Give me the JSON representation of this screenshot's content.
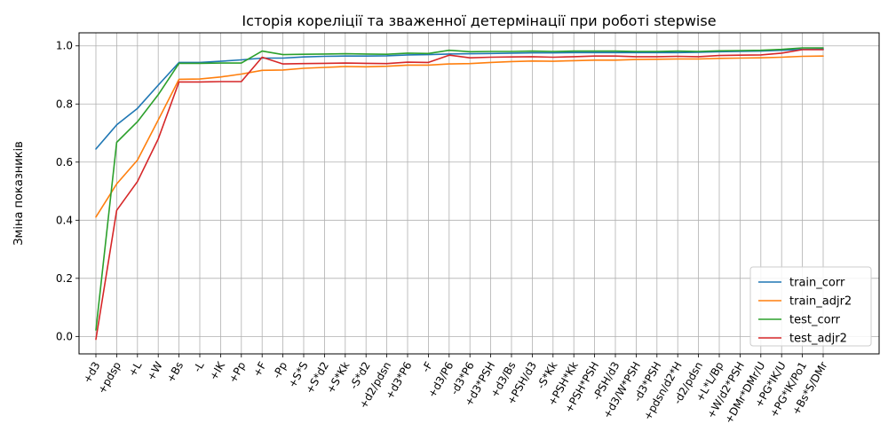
{
  "chart_data": {
    "type": "line",
    "title": "Історія кореліції та зваженної детермінації при роботі stepwise",
    "xlabel": "",
    "ylabel": "Зміна показників",
    "ylim": [
      -0.06,
      1.045
    ],
    "yticks": [
      0.0,
      0.2,
      0.4,
      0.6,
      0.8,
      1.0
    ],
    "yticklabels": [
      "0.0",
      "0.2",
      "0.4",
      "0.6",
      "0.8",
      "1.0"
    ],
    "grid": true,
    "legend_position": "lower-right",
    "categories": [
      "+d3",
      "+pdsp",
      "+L",
      "+W",
      "+Bs",
      "-L",
      "+IK",
      "+Pp",
      "+F",
      "-Pp",
      "+S*S",
      "+S*d2",
      "+S*Kk",
      "-S*d2",
      "+d2/pdsn",
      "+d3*P6",
      "-F",
      "+d3/P6",
      "-d3*P6",
      "+d3*PSH",
      "+d3/Bs",
      "+PSH/d3",
      "-S*Kk",
      "+PSH*Kk",
      "+PSH*PSH",
      "-PSH/d3",
      "+d3/W*PSH",
      "-d3*PSH",
      "+pdsn/d2*H",
      "-d2/pdsn",
      "+L*L/Bp",
      "+W/d2*PSH",
      "+DMr*DMr/U",
      "+PG*IK/U",
      "+PG*IK/Po1",
      "+Bs*S/DMr"
    ],
    "series": [
      {
        "name": "train_corr",
        "color": "#1f77b4",
        "values": [
          0.645,
          0.728,
          0.785,
          0.865,
          0.943,
          0.943,
          0.947,
          0.952,
          0.958,
          0.958,
          0.962,
          0.964,
          0.965,
          0.965,
          0.966,
          0.969,
          0.97,
          0.972,
          0.973,
          0.974,
          0.975,
          0.976,
          0.976,
          0.977,
          0.977,
          0.977,
          0.977,
          0.977,
          0.977,
          0.978,
          0.98,
          0.981,
          0.982,
          0.985,
          0.988,
          0.989
        ]
      },
      {
        "name": "train_adjr2",
        "color": "#ff7f0e",
        "values": [
          0.411,
          0.525,
          0.607,
          0.745,
          0.885,
          0.886,
          0.893,
          0.903,
          0.916,
          0.917,
          0.923,
          0.926,
          0.929,
          0.928,
          0.93,
          0.934,
          0.934,
          0.938,
          0.939,
          0.943,
          0.946,
          0.948,
          0.947,
          0.949,
          0.951,
          0.951,
          0.953,
          0.954,
          0.955,
          0.955,
          0.957,
          0.958,
          0.959,
          0.961,
          0.964,
          0.965
        ]
      },
      {
        "name": "test_corr",
        "color": "#2ca02c",
        "values": [
          0.022,
          0.668,
          0.739,
          0.832,
          0.94,
          0.94,
          0.941,
          0.941,
          0.982,
          0.97,
          0.971,
          0.972,
          0.973,
          0.972,
          0.971,
          0.975,
          0.974,
          0.985,
          0.98,
          0.981,
          0.981,
          0.982,
          0.981,
          0.982,
          0.982,
          0.982,
          0.981,
          0.981,
          0.982,
          0.981,
          0.983,
          0.984,
          0.985,
          0.988,
          0.993,
          0.993
        ]
      },
      {
        "name": "test_adjr2",
        "color": "#d62728",
        "values": [
          -0.01,
          0.434,
          0.533,
          0.68,
          0.876,
          0.876,
          0.877,
          0.877,
          0.961,
          0.938,
          0.939,
          0.94,
          0.941,
          0.94,
          0.939,
          0.944,
          0.943,
          0.968,
          0.959,
          0.961,
          0.962,
          0.963,
          0.961,
          0.963,
          0.965,
          0.965,
          0.963,
          0.963,
          0.964,
          0.963,
          0.967,
          0.968,
          0.969,
          0.975,
          0.987,
          0.987
        ]
      }
    ]
  }
}
